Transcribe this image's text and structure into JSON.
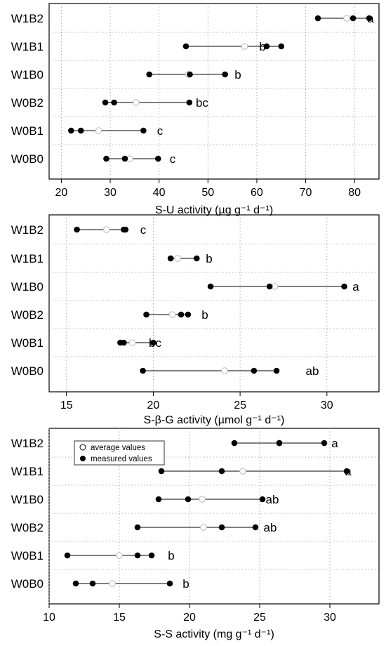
{
  "legend": {
    "average": "average values",
    "measured": "measured values"
  },
  "chart_data": [
    {
      "type": "scatter",
      "xlabel": "S-U activity  (µg g⁻¹ d⁻¹)",
      "xlim": [
        17.5,
        85
      ],
      "xticks": [
        20,
        30,
        40,
        50,
        60,
        70,
        80
      ],
      "categories": [
        "W1B2",
        "W1B1",
        "W1B0",
        "W0B2",
        "W0B1",
        "W0B0"
      ],
      "series": [
        {
          "name": "measured values",
          "values": [
            [
              72.5,
              79.7,
              83.0
            ],
            [
              45.5,
              62.0,
              65.0
            ],
            [
              38.0,
              46.3,
              53.5
            ],
            [
              29.0,
              30.8,
              46.2
            ],
            [
              22.0,
              24.0,
              36.8
            ],
            [
              29.2,
              33.0,
              39.8
            ]
          ]
        },
        {
          "name": "average values",
          "values": [
            78.4,
            57.5,
            46.0,
            35.3,
            27.6,
            34.0
          ]
        }
      ],
      "letters": [
        "a",
        "b",
        "b",
        "bc",
        "c",
        "c"
      ]
    },
    {
      "type": "scatter",
      "xlabel": "S-β-G activity  (µmol g⁻¹ d⁻¹)",
      "xlim": [
        14,
        33
      ],
      "xticks": [
        15,
        20,
        25,
        30
      ],
      "categories": [
        "W1B2",
        "W1B1",
        "W1B0",
        "W0B2",
        "W0B1",
        "W0B0"
      ],
      "series": [
        {
          "name": "measured values",
          "values": [
            [
              15.6,
              18.3,
              18.4
            ],
            [
              21.0,
              21.0,
              22.5
            ],
            [
              23.3,
              26.7,
              31.0
            ],
            [
              19.6,
              21.6,
              22.0
            ],
            [
              18.1,
              18.3,
              20.0
            ],
            [
              19.4,
              25.8,
              27.1
            ]
          ]
        },
        {
          "name": "average values",
          "values": [
            17.3,
            21.4,
            27.0,
            21.1,
            18.8,
            24.1
          ]
        }
      ],
      "letters": [
        "c",
        "b",
        "a",
        "b",
        "bc",
        "ab"
      ]
    },
    {
      "type": "scatter",
      "xlabel": "S-S activity  (mg g⁻¹ d⁻¹)",
      "xlim": [
        10,
        33.5
      ],
      "xticks": [
        10,
        15,
        20,
        25,
        30
      ],
      "categories": [
        "W1B2",
        "W1B1",
        "W1B0",
        "W0B2",
        "W0B1",
        "W0B0"
      ],
      "series": [
        {
          "name": "measured values",
          "values": [
            [
              23.2,
              26.4,
              29.6
            ],
            [
              18.0,
              22.3,
              31.2
            ],
            [
              17.8,
              19.9,
              25.2
            ],
            [
              16.3,
              22.3,
              24.7
            ],
            [
              11.3,
              16.3,
              17.3
            ],
            [
              11.9,
              13.1,
              18.6
            ]
          ]
        },
        {
          "name": "average values",
          "values": [
            26.4,
            23.8,
            20.9,
            21.0,
            15.0,
            14.5
          ]
        }
      ],
      "letters": [
        "a",
        "a",
        "ab",
        "ab",
        "b",
        "b"
      ]
    }
  ]
}
